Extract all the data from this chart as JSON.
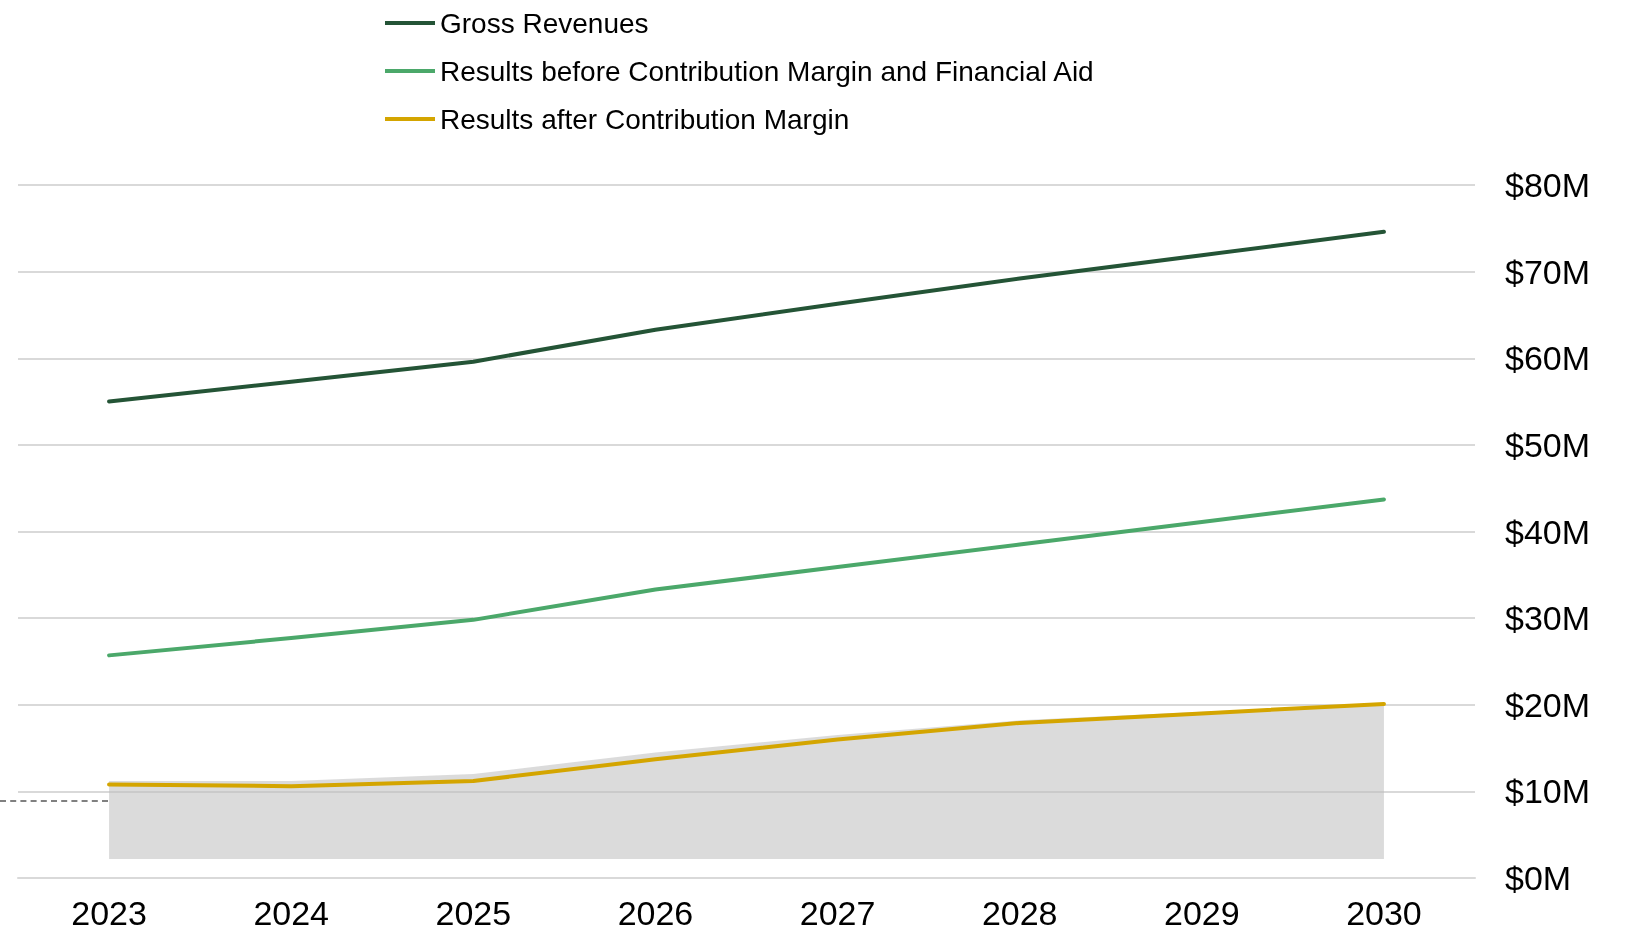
{
  "chart_data": {
    "type": "line",
    "categories": [
      "2023",
      "2024",
      "2025",
      "2026",
      "2027",
      "2028",
      "2029",
      "2030"
    ],
    "series": [
      {
        "name": "Gross Revenues",
        "color": "#245436",
        "values": [
          55.0,
          57.3,
          59.6,
          63.3,
          66.3,
          69.2,
          71.9,
          74.6
        ]
      },
      {
        "name": "Results before Contribution Margin and Financial Aid",
        "color": "#4ba86a",
        "values": [
          25.7,
          27.7,
          29.8,
          33.3,
          35.9,
          38.5,
          41.1,
          43.7
        ]
      },
      {
        "name": "Results after Contribution Margin",
        "color": "#d4a500",
        "values": [
          10.8,
          10.6,
          11.2,
          13.7,
          16.0,
          17.9,
          19.0,
          20.1
        ],
        "lower": [
          2.2,
          2.2,
          2.2,
          2.2,
          2.2,
          2.2,
          2.2,
          2.2
        ],
        "upper": [
          11.2,
          11.2,
          12.0,
          14.5,
          16.5,
          18.2,
          19.2,
          20.1
        ]
      }
    ],
    "ylim": [
      0,
      80
    ],
    "yticks": [
      {
        "value": 0,
        "label": "$0M"
      },
      {
        "value": 10,
        "label": "$10M"
      },
      {
        "value": 20,
        "label": "$20M"
      },
      {
        "value": 30,
        "label": "$30M"
      },
      {
        "value": 40,
        "label": "$40M"
      },
      {
        "value": 50,
        "label": "$50M"
      },
      {
        "value": 60,
        "label": "$60M"
      },
      {
        "value": 70,
        "label": "$70M"
      },
      {
        "value": 80,
        "label": "$80M"
      }
    ],
    "grid": "y",
    "legend": "top",
    "marker": "none",
    "line_style": "solid"
  }
}
